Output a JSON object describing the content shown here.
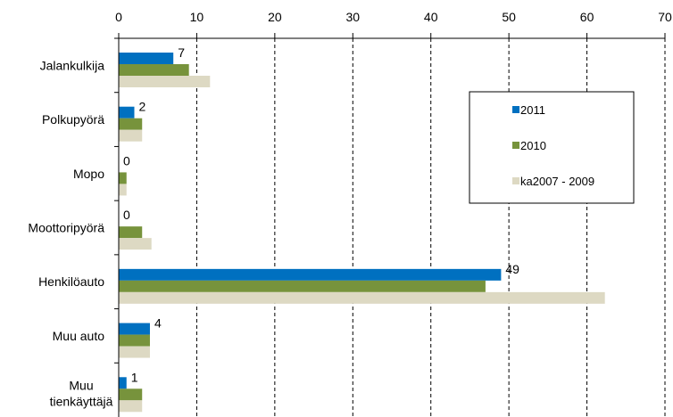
{
  "chart_data": {
    "type": "bar",
    "orientation": "horizontal",
    "categories": [
      "Jalankulkija",
      "Polkupyörä",
      "Mopo",
      "Moottoripyörä",
      "Henkilöauto",
      "Muu auto",
      "Muu\ntienkäyttäjä"
    ],
    "series": [
      {
        "name": "2011",
        "color": "#0070c0",
        "values": [
          7,
          2,
          0,
          0,
          49,
          4,
          1
        ],
        "data_labels": [
          "7",
          "2",
          "0",
          "0",
          "49",
          "4",
          "1"
        ]
      },
      {
        "name": "2010",
        "color": "#77933c",
        "values": [
          9,
          3,
          1,
          3,
          47,
          4,
          3
        ]
      },
      {
        "name": "ka2007 - 2009",
        "color": "#ddd9c3",
        "values": [
          11.7,
          3,
          1,
          4.2,
          62.3,
          4,
          3
        ]
      }
    ],
    "x_ticks": [
      "0",
      "10",
      "20",
      "30",
      "40",
      "50",
      "60",
      "70"
    ],
    "xlim": [
      0,
      70
    ],
    "x_axis_position": "top",
    "grid": "vertical dashed",
    "legend_position": "right",
    "title": "",
    "xlabel": "",
    "ylabel": ""
  }
}
